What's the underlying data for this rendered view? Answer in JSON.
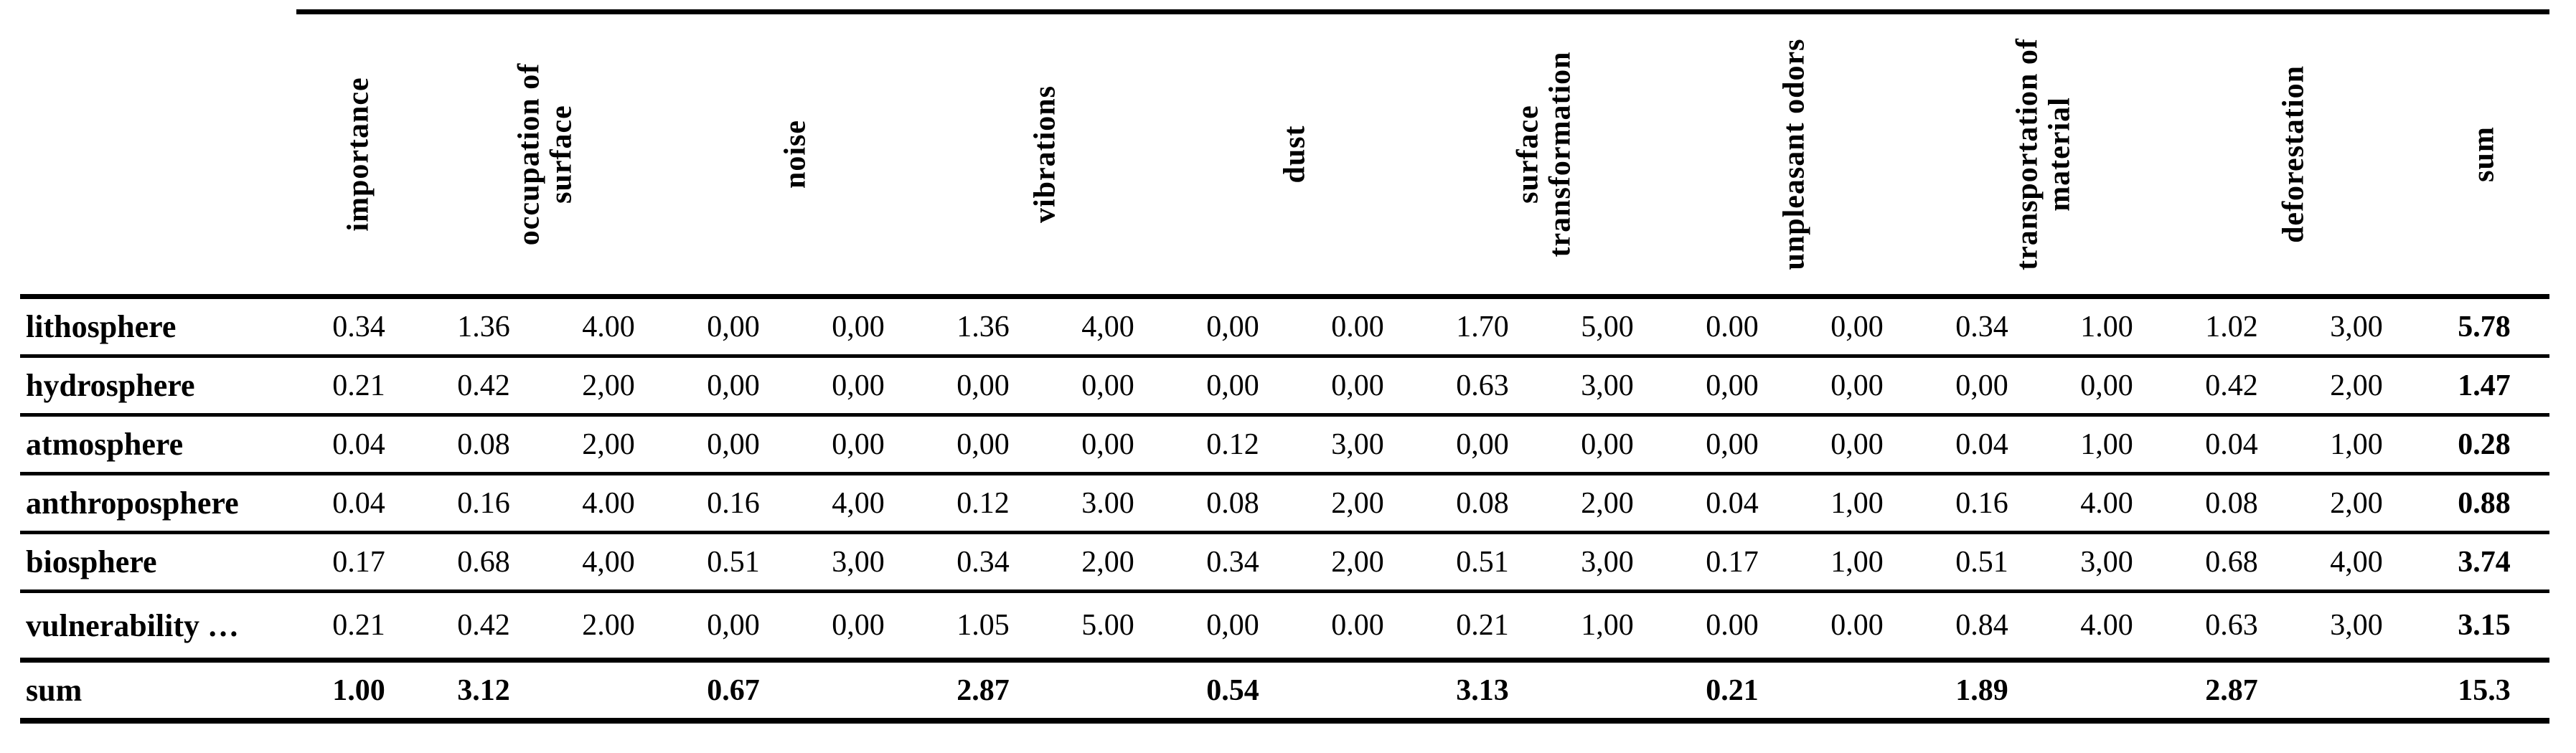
{
  "table": {
    "corner_label": "",
    "column_groups": [
      {
        "label": "importance",
        "span": 1
      },
      {
        "label": "occupation of\nsurface",
        "span": 2
      },
      {
        "label": "noise",
        "span": 2
      },
      {
        "label": "vibrations",
        "span": 2
      },
      {
        "label": "dust",
        "span": 2
      },
      {
        "label": "surface\ntransformation",
        "span": 2
      },
      {
        "label": "unpleasant odors",
        "span": 2
      },
      {
        "label": "transportation of\nmaterial",
        "span": 2
      },
      {
        "label": "deforestation",
        "span": 2
      },
      {
        "label": "sum",
        "span": 1
      }
    ],
    "rows": [
      {
        "label": "lithosphere",
        "cells": [
          "0.34",
          "1.36",
          "4.00",
          "0,00",
          "0,00",
          "1.36",
          "4,00",
          "0,00",
          "0.00",
          "1.70",
          "5,00",
          "0.00",
          "0,00",
          "0.34",
          "1.00",
          "1.02",
          "3,00"
        ],
        "sum": "5.78"
      },
      {
        "label": "hydrosphere",
        "cells": [
          "0.21",
          "0.42",
          "2,00",
          "0,00",
          "0,00",
          "0,00",
          "0,00",
          "0,00",
          "0,00",
          "0.63",
          "3,00",
          "0,00",
          "0,00",
          "0,00",
          "0,00",
          "0.42",
          "2,00"
        ],
        "sum": "1.47"
      },
      {
        "label": "atmosphere",
        "cells": [
          "0.04",
          "0.08",
          "2,00",
          "0,00",
          "0,00",
          "0,00",
          "0,00",
          "0.12",
          "3,00",
          "0,00",
          "0,00",
          "0,00",
          "0,00",
          "0.04",
          "1,00",
          "0.04",
          "1,00"
        ],
        "sum": "0.28"
      },
      {
        "label": "anthroposphere",
        "cells": [
          "0.04",
          "0.16",
          "4.00",
          "0.16",
          "4,00",
          "0.12",
          "3.00",
          "0.08",
          "2,00",
          "0.08",
          "2,00",
          "0.04",
          "1,00",
          "0.16",
          "4.00",
          "0.08",
          "2,00"
        ],
        "sum": "0.88"
      },
      {
        "label": "biosphere",
        "cells": [
          "0.17",
          "0.68",
          "4,00",
          "0.51",
          "3,00",
          "0.34",
          "2,00",
          "0.34",
          "2,00",
          "0.51",
          "3,00",
          "0.17",
          "1,00",
          "0.51",
          "3,00",
          "0.68",
          "4,00"
        ],
        "sum": "3.74"
      },
      {
        "label": "vulnerability …",
        "cells": [
          "0.21",
          "0.42",
          "2.00",
          "0,00",
          "0,00",
          "1.05",
          "5.00",
          "0,00",
          "0.00",
          "0.21",
          "1,00",
          "0.00",
          "0.00",
          "0.84",
          "4.00",
          "0.63",
          "3,00"
        ],
        "sum": "3.15"
      }
    ],
    "sum_row": {
      "label": "sum",
      "cells": [
        "1.00",
        "3.12",
        "",
        "0.67",
        "",
        "2.87",
        "",
        "0.54",
        "",
        "3.13",
        "",
        "0.21",
        "",
        "1.89",
        "",
        "2.87",
        ""
      ],
      "sum": "15.3"
    },
    "colors": {
      "text": "#000000",
      "rule": "#000000",
      "background": "#ffffff"
    }
  }
}
